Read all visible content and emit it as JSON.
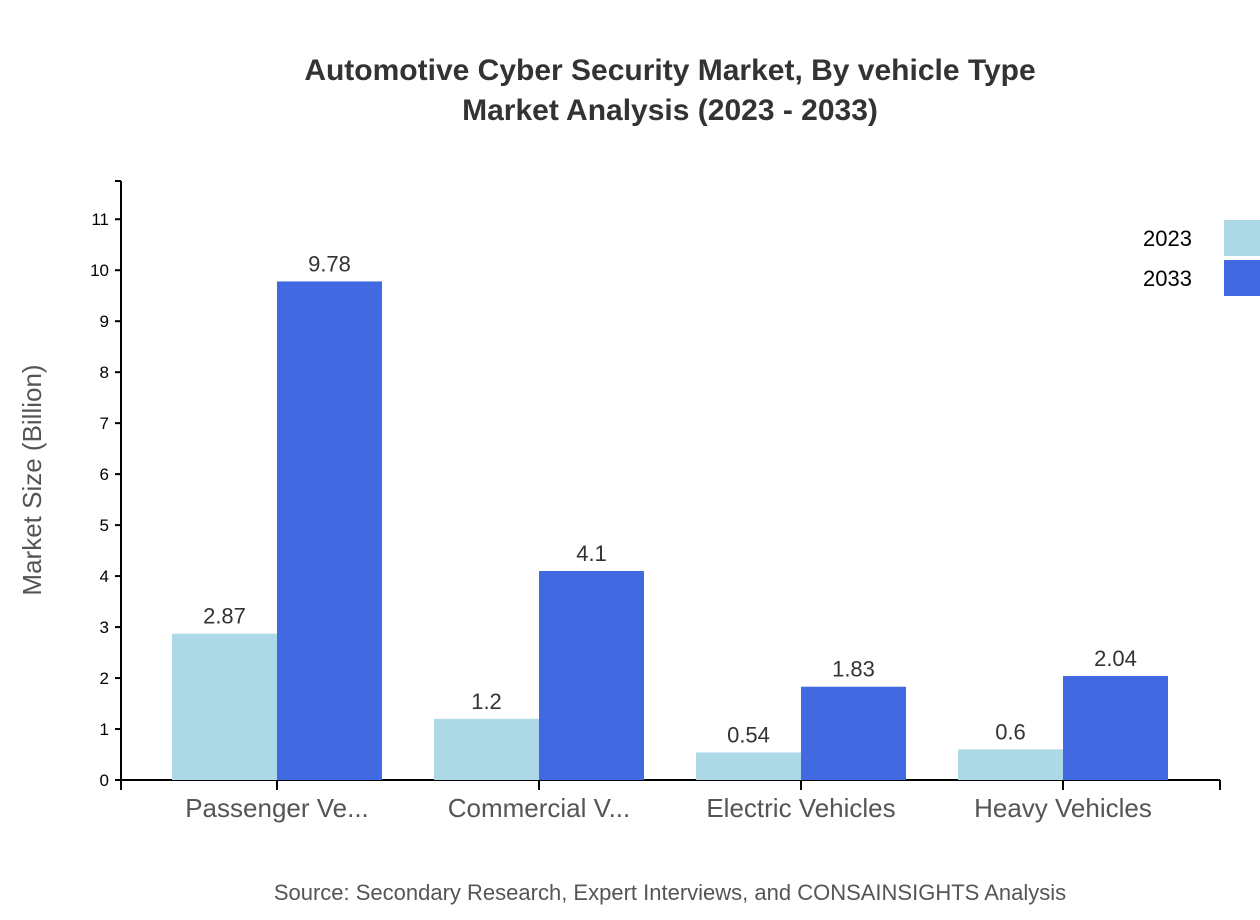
{
  "chart_data": {
    "type": "bar",
    "title": "Automotive Cyber Security Market, By vehicle Type",
    "subtitle": "Market Analysis (2023 - 2033)",
    "xlabel": "",
    "ylabel": "Market Size (Billion)",
    "categories": [
      "Passenger Ve...",
      "Commercial V...",
      "Electric Vehicles",
      "Heavy Vehicles"
    ],
    "series": [
      {
        "name": "2023",
        "color": "#add8e6",
        "values": [
          2.87,
          1.2,
          0.54,
          0.6
        ]
      },
      {
        "name": "2033",
        "color": "#4169e1",
        "values": [
          9.78,
          4.1,
          1.83,
          2.04
        ]
      }
    ],
    "ylim": [
      0,
      11.75
    ],
    "yticks": [
      0,
      1,
      2,
      3,
      4,
      5,
      6,
      7,
      8,
      9,
      10,
      11
    ],
    "grid": false,
    "legend": "top-right",
    "source": "Source: Secondary Research, Expert Interviews, and CONSAINSIGHTS Analysis"
  }
}
